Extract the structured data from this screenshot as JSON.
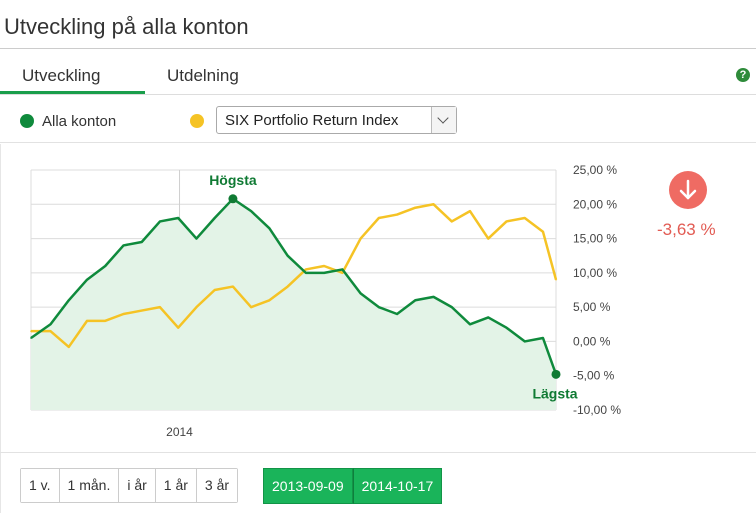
{
  "page": {
    "title": "Utveckling på alla konton"
  },
  "tabs": [
    {
      "label": "Utveckling",
      "active": true
    },
    {
      "label": "Utdelning",
      "active": false
    }
  ],
  "help_icon": "question-icon",
  "legend": {
    "series1_label": "Alla konton",
    "series1_color": "#0f8a3c",
    "series2_color": "#f5c325",
    "compare_select_value": "SIX Portfolio Return Index"
  },
  "change": {
    "value": "-3,63 %",
    "icon": "arrow-down-icon",
    "color": "#ef6b63"
  },
  "range_buttons": [
    "1 v.",
    "1 mån.",
    "i år",
    "1 år",
    "3 år"
  ],
  "date_range": {
    "from": "2013-09-09",
    "to": "2014-10-17"
  },
  "chart_data": {
    "type": "area",
    "x_start": "2013-09-09",
    "x_end": "2014-10-17",
    "x_tick_labels": [
      "2014"
    ],
    "ylim": [
      -10,
      25
    ],
    "y_ticks": [
      25,
      20,
      15,
      10,
      5,
      0,
      -5,
      -10
    ],
    "y_tick_labels": [
      "25,00 %",
      "20,00 %",
      "15,00 %",
      "10,00 %",
      "5,00 %",
      "0,00 %",
      "-5,00 %",
      "-10,00 %"
    ],
    "grid": true,
    "annotations": {
      "high_label": "Högsta",
      "low_label": "Lägsta"
    },
    "series": [
      {
        "name": "Alla konton",
        "color": "#0f8a3c",
        "fill": "#e3f3e7",
        "x": [
          "2013-09-09",
          "2013-09-24",
          "2013-10-08",
          "2013-10-22",
          "2013-11-05",
          "2013-11-19",
          "2013-12-03",
          "2013-12-17",
          "2013-12-31",
          "2014-01-14",
          "2014-01-28",
          "2014-02-11",
          "2014-02-25",
          "2014-03-11",
          "2014-03-25",
          "2014-04-08",
          "2014-04-22",
          "2014-05-06",
          "2014-05-20",
          "2014-06-03",
          "2014-06-17",
          "2014-07-01",
          "2014-07-15",
          "2014-07-29",
          "2014-08-12",
          "2014-08-26",
          "2014-09-09",
          "2014-09-23",
          "2014-10-07",
          "2014-10-17"
        ],
        "values": [
          0.5,
          2.5,
          6,
          9,
          11,
          14,
          14.5,
          17.5,
          18,
          15,
          18,
          20.8,
          19,
          16.5,
          12.5,
          10,
          10,
          10.5,
          7,
          5,
          4,
          6,
          6.5,
          5,
          2.5,
          3.5,
          2,
          0,
          0.5,
          -4.8
        ]
      },
      {
        "name": "SIX Portfolio Return Index",
        "color": "#f5c325",
        "x": [
          "2013-09-09",
          "2013-09-24",
          "2013-10-08",
          "2013-10-22",
          "2013-11-05",
          "2013-11-19",
          "2013-12-03",
          "2013-12-17",
          "2013-12-31",
          "2014-01-14",
          "2014-01-28",
          "2014-02-11",
          "2014-02-25",
          "2014-03-11",
          "2014-03-25",
          "2014-04-08",
          "2014-04-22",
          "2014-05-06",
          "2014-05-20",
          "2014-06-03",
          "2014-06-17",
          "2014-07-01",
          "2014-07-15",
          "2014-07-29",
          "2014-08-12",
          "2014-08-26",
          "2014-09-09",
          "2014-09-23",
          "2014-10-07",
          "2014-10-17"
        ],
        "values": [
          1.5,
          1.5,
          -0.8,
          3,
          3,
          4,
          4.5,
          5,
          2,
          5,
          7.5,
          8,
          5,
          6,
          8,
          10.5,
          11,
          10,
          15,
          18,
          18.5,
          19.5,
          20,
          17.5,
          19,
          15,
          17.5,
          18,
          16,
          9
        ]
      }
    ],
    "high_point": {
      "x": "2014-02-11",
      "y": 20.8
    },
    "low_point": {
      "x": "2014-10-17",
      "y": -4.8
    }
  }
}
